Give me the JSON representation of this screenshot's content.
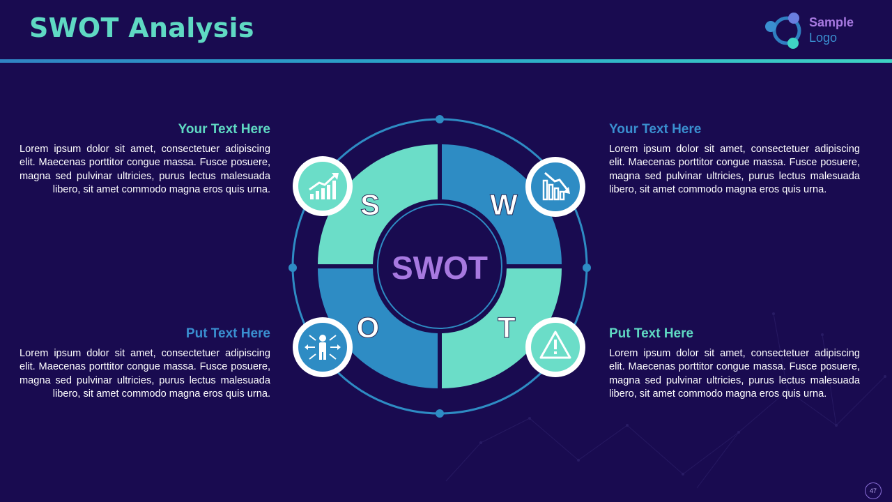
{
  "title": "SWOT Analysis",
  "logo": {
    "line1": "Sample",
    "line2": "Logo"
  },
  "center_label": "SWOT",
  "quadrants": {
    "s": {
      "letter": "S",
      "heading": "Your Text Here",
      "body": "Lorem ipsum dolor sit amet, consectetuer adipiscing elit. Maecenas porttitor congue massa. Fusce posuere, magna sed pulvinar ultricies, purus lectus malesuada libero, sit amet commodo magna eros quis urna.",
      "icon": "growth-chart-icon"
    },
    "w": {
      "letter": "W",
      "heading": "Your Text Here",
      "body": "Lorem ipsum dolor sit amet, consectetuer adipiscing elit. Maecenas porttitor congue massa. Fusce posuere, magna sed pulvinar ultricies, purus lectus malesuada libero, sit amet commodo magna eros quis urna.",
      "icon": "declining-chart-icon"
    },
    "o": {
      "letter": "O",
      "heading": "Put Text Here",
      "body": "Lorem ipsum dolor sit amet, consectetuer adipiscing elit. Maecenas porttitor congue massa. Fusce posuere, magna sed pulvinar ultricies, purus lectus malesuada libero, sit amet commodo magna eros quis urna.",
      "icon": "person-arrows-icon"
    },
    "t": {
      "letter": "T",
      "heading": "Put Text Here",
      "body": "Lorem ipsum dolor sit amet, consectetuer adipiscing elit. Maecenas porttitor congue massa. Fusce posuere, magna sed pulvinar ultricies, purus lectus malesuada libero, sit amet commodo magna eros quis urna.",
      "icon": "warning-icon"
    }
  },
  "page_number": "47",
  "colors": {
    "background": "#190b50",
    "teal": "#5fd9c3",
    "blue": "#2e8cc4",
    "purple": "#a779e0"
  }
}
